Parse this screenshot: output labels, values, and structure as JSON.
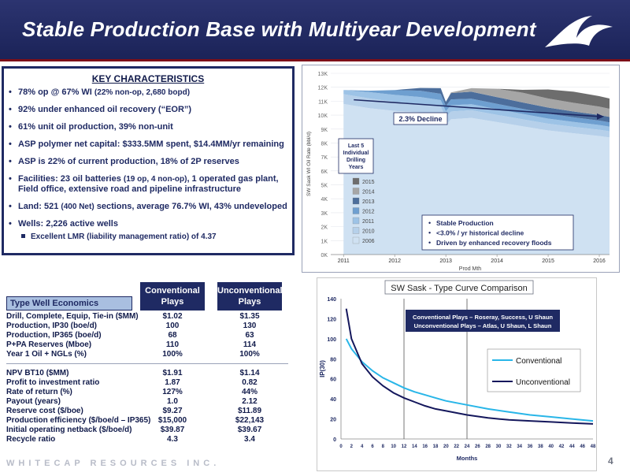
{
  "header": {
    "title": "Stable Production Base with Multiyear Development",
    "bg_color": "#1b2358",
    "accent_color": "#7d0f18",
    "logo_icon": "wave-logo-icon"
  },
  "key_characteristics": {
    "heading": "KEY CHARACTERISTICS",
    "items": [
      {
        "main": "78% op @ 67% WI ",
        "small": "(22% non-op, 2,680 bopd)"
      },
      {
        "main": "92% under enhanced oil recovery (“EOR”)",
        "small": ""
      },
      {
        "main": "61% unit oil production, 39% non-unit",
        "small": ""
      },
      {
        "main": "ASP polymer net capital: $333.5MM spent, $14.4MM/yr remaining",
        "small": ""
      },
      {
        "main": "ASP is 22% of current production, 18% of 2P reserves",
        "small": ""
      },
      {
        "main": "Facilities: 23 oil batteries ",
        "small": "(19 op, 4 non-op)",
        "rest": ", 1 operated gas plant, Field office, extensive road and pipeline infrastructure"
      },
      {
        "main": "Land: 521 ",
        "small": "(400 Net)",
        "rest": " sections, average 76.7% WI, 43% undeveloped"
      },
      {
        "main": "Wells:  2,226 active wells",
        "small": ""
      }
    ],
    "sub_item": "Excellent LMR (liability management ratio) of 4.37"
  },
  "type_well_economics": {
    "title": "Type Well Economics",
    "col1": "Conventional Plays",
    "col2": "Unconventional Plays",
    "rows_a": [
      {
        "label": "Drill, Complete, Equip, Tie-in ($MM)",
        "c1": "$1.02",
        "c2": "$1.35"
      },
      {
        "label": "Production, IP30 (boe/d)",
        "c1": "100",
        "c2": "130"
      },
      {
        "label": "Production, IP365 (boe/d)",
        "c1": "68",
        "c2": "63"
      },
      {
        "label": "P+PA Reserves (Mboe)",
        "c1": "110",
        "c2": "114"
      },
      {
        "label": "Year 1 Oil + NGLs (%)",
        "c1": "100%",
        "c2": "100%"
      }
    ],
    "rows_b": [
      {
        "label": "NPV BT10 ($MM)",
        "c1": "$1.91",
        "c2": "$1.14"
      },
      {
        "label": "Profit to investment ratio",
        "c1": "1.87",
        "c2": "0.82"
      },
      {
        "label": "Rate of return (%)",
        "c1": "127%",
        "c2": "44%"
      },
      {
        "label": "Payout (years)",
        "c1": "1.0",
        "c2": "2.12"
      },
      {
        "label": "Reserve cost ($/boe)",
        "c1": "$9.27",
        "c2": "$11.89"
      },
      {
        "label": "Production efficiency ($/boe/d – IP365)",
        "c1": "$15,000",
        "c2": "$22,143"
      },
      {
        "label": "Initial operating netback ($/boe/d)",
        "c1": "$39.87",
        "c2": "$39.67"
      },
      {
        "label": "Recycle ratio",
        "c1": "4.3",
        "c2": "3.4"
      }
    ]
  },
  "chart_data": [
    {
      "type": "area",
      "title": "",
      "ylabel": "SW Sask WI Oil Rate (bbl/d)",
      "xlabel": "Prod Mth",
      "ylim": [
        0,
        13000
      ],
      "y_ticks": [
        "0K",
        "1K",
        "2K",
        "3K",
        "4K",
        "5K",
        "6K",
        "7K",
        "8K",
        "9K",
        "10K",
        "11K",
        "12K",
        "13K"
      ],
      "x_ticks": [
        "2011",
        "2012",
        "2013",
        "2014",
        "2015",
        "2016"
      ],
      "x": [
        2011.0,
        2011.5,
        2012.0,
        2012.5,
        2012.9,
        2013.0,
        2013.1,
        2013.5,
        2014.0,
        2014.5,
        2015.0,
        2015.5,
        2016.0,
        2016.2
      ],
      "legend_title": "Last 5 Individual Drilling Years",
      "legend_position": "left-center",
      "series": [
        {
          "name": "2006",
          "color": "#cfe1f2",
          "values": [
            10800,
            10500,
            10300,
            10200,
            10000,
            9300,
            9700,
            9800,
            9500,
            9200,
            8900,
            8700,
            8500,
            8400
          ]
        },
        {
          "name": "2010",
          "color": "#b6d0ea",
          "values": [
            700,
            700,
            650,
            600,
            600,
            550,
            560,
            550,
            520,
            500,
            480,
            460,
            450,
            440
          ]
        },
        {
          "name": "2011",
          "color": "#9dc3e6",
          "values": [
            300,
            450,
            500,
            500,
            480,
            420,
            450,
            430,
            410,
            390,
            370,
            350,
            340,
            330
          ]
        },
        {
          "name": "2012",
          "color": "#6e9fd0",
          "values": [
            0,
            100,
            350,
            450,
            450,
            380,
            420,
            400,
            380,
            360,
            350,
            330,
            320,
            310
          ]
        },
        {
          "name": "2013",
          "color": "#4c6e9c",
          "values": [
            0,
            0,
            0,
            200,
            400,
            300,
            450,
            500,
            480,
            460,
            440,
            420,
            400,
            390
          ]
        },
        {
          "name": "2014",
          "color": "#a6a6a6",
          "values": [
            0,
            0,
            0,
            0,
            0,
            0,
            50,
            250,
            600,
            700,
            650,
            620,
            600,
            590
          ]
        },
        {
          "name": "2015",
          "color": "#6d6d6d",
          "values": [
            0,
            0,
            0,
            0,
            0,
            0,
            0,
            0,
            0,
            200,
            650,
            800,
            750,
            730
          ]
        }
      ],
      "trend": {
        "label": "2.3% Decline",
        "x": [
          2011.2,
          2016.0
        ],
        "y": [
          11100,
          9900
        ],
        "color": "#1f2a63"
      },
      "notes": [
        "Stable Production",
        "<3.0% / yr historical decline",
        "Driven by enhanced recovery floods"
      ]
    },
    {
      "type": "line",
      "title": "SW Sask - Type Curve Comparison",
      "xlabel": "Months",
      "ylabel": "IP(30)",
      "xlim": [
        0,
        48
      ],
      "ylim": [
        0,
        140
      ],
      "x_ticks": [
        0,
        2,
        4,
        6,
        8,
        10,
        12,
        14,
        16,
        18,
        20,
        22,
        24,
        26,
        28,
        30,
        32,
        34,
        36,
        38,
        40,
        42,
        44,
        46,
        48
      ],
      "y_ticks": [
        0,
        20,
        40,
        60,
        80,
        100,
        120,
        140
      ],
      "vlines": [
        12,
        24
      ],
      "annotation": [
        "Conventional Plays – Roseray, Success, U Shaun",
        "Unconventional Plays – Atlas, U Shaun, L Shaun"
      ],
      "legend_position": "right-center",
      "series": [
        {
          "name": "Conventional",
          "color": "#29b6e8",
          "x": [
            1,
            2,
            4,
            6,
            8,
            10,
            12,
            14,
            16,
            18,
            20,
            24,
            28,
            32,
            36,
            40,
            44,
            48
          ],
          "values": [
            100,
            90,
            77,
            68,
            61,
            56,
            51,
            47,
            44,
            41,
            38,
            34,
            30,
            27,
            24,
            22,
            20,
            18
          ]
        },
        {
          "name": "Unconventional",
          "color": "#14175c",
          "x": [
            1,
            2,
            4,
            6,
            8,
            10,
            12,
            14,
            16,
            18,
            20,
            24,
            28,
            32,
            36,
            40,
            44,
            48
          ],
          "values": [
            130,
            100,
            75,
            62,
            53,
            46,
            41,
            37,
            33,
            30,
            28,
            24,
            21,
            19,
            18,
            17,
            16,
            15
          ]
        }
      ]
    }
  ],
  "footer": {
    "company": "WHITECAP RESOURCES INC.",
    "page": "4"
  }
}
